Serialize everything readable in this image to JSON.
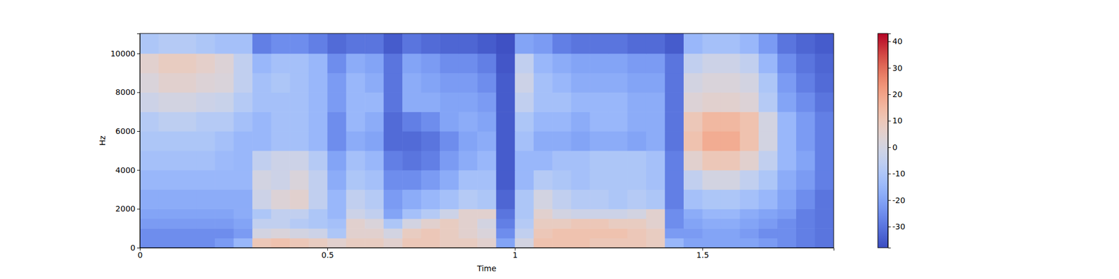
{
  "chart_data": {
    "type": "heatmap",
    "x_label": "Time",
    "y_label": "Hz",
    "xlim": [
      0,
      1.85
    ],
    "ylim": [
      0,
      11025
    ],
    "xticks": [
      0,
      0.5,
      1,
      1.5
    ],
    "yticks": [
      0,
      2000,
      4000,
      6000,
      8000,
      10000
    ],
    "x_bins": [
      0,
      0.05,
      0.1,
      0.15,
      0.2,
      0.25,
      0.3,
      0.35,
      0.4,
      0.45,
      0.5,
      0.55,
      0.6,
      0.65,
      0.7,
      0.75,
      0.8,
      0.85,
      0.9,
      0.95,
      1,
      1.05,
      1.1,
      1.15,
      1.2,
      1.25,
      1.3,
      1.35,
      1.4,
      1.45,
      1.5,
      1.55,
      1.6,
      1.65,
      1.7,
      1.75,
      1.8,
      1.85
    ],
    "y_bins": [
      0,
      500,
      1000,
      1500,
      2000,
      3000,
      4000,
      5000,
      6000,
      7000,
      8000,
      9000,
      10000,
      11025
    ],
    "z": [
      [
        -25,
        -25,
        -25,
        -25,
        -22,
        -15,
        10,
        12,
        10,
        8,
        5,
        8,
        8,
        5,
        10,
        10,
        8,
        8,
        5,
        -20,
        0,
        12,
        12,
        12,
        10,
        10,
        10,
        8,
        -15,
        -20,
        -20,
        -20,
        -20,
        -22,
        -25,
        -28,
        -30
      ],
      [
        -25,
        -25,
        -25,
        -25,
        -25,
        -22,
        0,
        2,
        0,
        -2,
        -10,
        5,
        5,
        0,
        8,
        10,
        8,
        5,
        2,
        -25,
        -5,
        10,
        12,
        12,
        12,
        12,
        10,
        8,
        -22,
        -22,
        -20,
        -20,
        -22,
        -25,
        -25,
        -28,
        -30
      ],
      [
        -22,
        -22,
        -22,
        -22,
        -22,
        -20,
        -5,
        -5,
        -8,
        -10,
        -12,
        5,
        2,
        -10,
        0,
        5,
        8,
        5,
        0,
        -28,
        -8,
        8,
        8,
        10,
        10,
        8,
        8,
        5,
        -25,
        -20,
        -18,
        -18,
        -20,
        -22,
        -25,
        -28,
        -30
      ],
      [
        -20,
        -20,
        -20,
        -20,
        -20,
        -18,
        -10,
        -5,
        -5,
        -10,
        -15,
        -2,
        -5,
        -20,
        -12,
        -8,
        -2,
        5,
        5,
        -30,
        -10,
        5,
        0,
        -2,
        -2,
        -2,
        0,
        5,
        -25,
        -18,
        -15,
        -15,
        -18,
        -20,
        -22,
        -28,
        -30
      ],
      [
        -18,
        -18,
        -18,
        -18,
        -18,
        -18,
        -2,
        3,
        5,
        -5,
        -15,
        -5,
        -8,
        -22,
        -18,
        -15,
        -12,
        -8,
        -10,
        -33,
        -10,
        0,
        -5,
        -8,
        -8,
        -10,
        -8,
        -10,
        -28,
        -12,
        -10,
        -10,
        -12,
        -15,
        -20,
        -25,
        -30
      ],
      [
        -15,
        -15,
        -15,
        -15,
        -15,
        -15,
        0,
        -2,
        2,
        -5,
        -18,
        -10,
        -12,
        -25,
        -25,
        -22,
        -18,
        -12,
        -12,
        -35,
        -15,
        -8,
        -10,
        -12,
        -10,
        -10,
        -10,
        -12,
        -28,
        -5,
        0,
        0,
        -5,
        -10,
        -18,
        -22,
        -28
      ],
      [
        -12,
        -12,
        -12,
        -12,
        -14,
        -15,
        -5,
        -2,
        -2,
        -8,
        -20,
        -12,
        -15,
        -28,
        -30,
        -28,
        -22,
        -18,
        -15,
        -35,
        -15,
        -15,
        -12,
        -12,
        -10,
        -10,
        -10,
        -12,
        -28,
        5,
        10,
        10,
        5,
        -5,
        -15,
        -20,
        -28
      ],
      [
        -10,
        -10,
        -10,
        -10,
        -12,
        -15,
        -15,
        -12,
        -12,
        -15,
        -25,
        -18,
        -20,
        -32,
        -32,
        -30,
        -25,
        -20,
        -18,
        -35,
        -12,
        -18,
        -18,
        -20,
        -18,
        -18,
        -20,
        -18,
        -30,
        12,
        18,
        18,
        12,
        0,
        -15,
        -22,
        -28
      ],
      [
        -8,
        -6,
        -6,
        -8,
        -8,
        -12,
        -15,
        -12,
        -12,
        -15,
        -25,
        -15,
        -18,
        -32,
        -28,
        -25,
        -20,
        -18,
        -20,
        -35,
        -10,
        -15,
        -15,
        -18,
        -15,
        -15,
        -18,
        -18,
        -30,
        10,
        15,
        15,
        12,
        0,
        -15,
        -22,
        -28
      ],
      [
        -2,
        0,
        0,
        -2,
        -3,
        -8,
        -12,
        -12,
        -12,
        -15,
        -22,
        -15,
        -15,
        -30,
        -18,
        -18,
        -20,
        -20,
        -22,
        -35,
        -5,
        -12,
        -12,
        -15,
        -15,
        -15,
        -18,
        -18,
        -30,
        3,
        5,
        5,
        3,
        -8,
        -20,
        -25,
        -30
      ],
      [
        2,
        5,
        5,
        3,
        2,
        -5,
        -12,
        -10,
        -12,
        -15,
        -22,
        -15,
        -18,
        -30,
        -18,
        -20,
        -22,
        -22,
        -25,
        -35,
        -2,
        -12,
        -15,
        -18,
        -18,
        -18,
        -20,
        -20,
        -30,
        0,
        2,
        2,
        0,
        -10,
        -22,
        -28,
        -32
      ],
      [
        5,
        8,
        8,
        6,
        3,
        -5,
        -15,
        -12,
        -12,
        -15,
        -25,
        -18,
        -20,
        -30,
        -20,
        -22,
        -25,
        -25,
        -28,
        -36,
        -5,
        -15,
        -18,
        -20,
        -20,
        -20,
        -22,
        -22,
        -30,
        -5,
        -2,
        -2,
        -5,
        -15,
        -25,
        -30,
        -33
      ],
      [
        -10,
        -8,
        -8,
        -10,
        -12,
        -12,
        -28,
        -25,
        -25,
        -28,
        -32,
        -30,
        -30,
        -35,
        -30,
        -32,
        -33,
        -33,
        -35,
        -37,
        -20,
        -22,
        -28,
        -30,
        -30,
        -30,
        -32,
        -32,
        -35,
        -15,
        -12,
        -12,
        -15,
        -22,
        -30,
        -33,
        -35
      ]
    ],
    "colorbar": {
      "range": [
        -38,
        43
      ],
      "ticks": [
        -30,
        -20,
        -10,
        0,
        10,
        20,
        30,
        40
      ]
    }
  }
}
